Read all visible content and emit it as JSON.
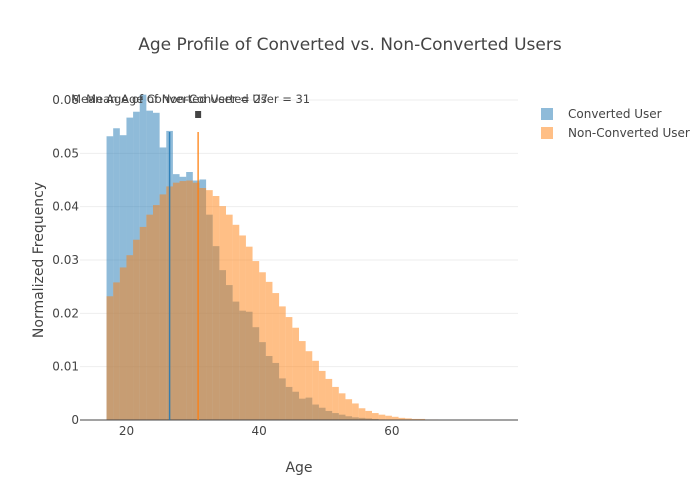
{
  "chart_data": {
    "type": "histogram",
    "title": "Age Profile of Converted vs. Non-Converted Users",
    "xlabel": "Age",
    "ylabel": "Normalized Frequency",
    "xlim": [
      13,
      79
    ],
    "ylim": [
      0,
      0.06
    ],
    "xticks": [
      20,
      40,
      60
    ],
    "yticks": [
      0,
      0.01,
      0.02,
      0.03,
      0.04,
      0.05,
      0.06
    ],
    "ytick_labels": [
      "0",
      "0.01",
      "0.02",
      "0.03",
      "0.04",
      "0.05",
      "0.06"
    ],
    "grid": true,
    "legend_position": "top-right",
    "bin_start": 17,
    "bin_width": 1,
    "series": [
      {
        "name": "Converted User",
        "color": "#1f77b4",
        "opacity": 0.5,
        "values": [
          0.0532,
          0.0547,
          0.0534,
          0.0567,
          0.0578,
          0.061,
          0.058,
          0.0576,
          0.0511,
          0.0542,
          0.0461,
          0.0456,
          0.0465,
          0.0449,
          0.0451,
          0.0385,
          0.0326,
          0.0281,
          0.0253,
          0.0222,
          0.0205,
          0.0203,
          0.0174,
          0.0146,
          0.012,
          0.0107,
          0.0078,
          0.0062,
          0.0053,
          0.004,
          0.0042,
          0.0029,
          0.0023,
          0.0017,
          0.0013,
          0.001,
          0.0007,
          0.0005,
          0.0004,
          0.0003,
          0.0002,
          0.0001
        ]
      },
      {
        "name": "Non-Converted User",
        "color": "#ff7f0e",
        "opacity": 0.5,
        "values": [
          0.0232,
          0.0258,
          0.0286,
          0.0309,
          0.0338,
          0.0362,
          0.0385,
          0.0403,
          0.0423,
          0.0438,
          0.0445,
          0.0448,
          0.0449,
          0.0445,
          0.0435,
          0.0431,
          0.042,
          0.0401,
          0.0385,
          0.0366,
          0.0346,
          0.0325,
          0.0298,
          0.0277,
          0.0259,
          0.0238,
          0.0213,
          0.0193,
          0.0173,
          0.0148,
          0.0129,
          0.0111,
          0.0092,
          0.0077,
          0.0062,
          0.005,
          0.0039,
          0.0031,
          0.0022,
          0.0017,
          0.0013,
          0.001,
          0.0008,
          0.0006,
          0.0004,
          0.0003,
          0.0002,
          0.0002,
          0.0001,
          0.0001
        ]
      }
    ],
    "mean_lines": [
      {
        "x": 26.5,
        "color": "#1f77b4",
        "label": "Mean Age of Converted User = 27"
      },
      {
        "x": 30.8,
        "color": "#ff7f0e",
        "label": "Mean Age of Non-Converted User = 31"
      }
    ]
  }
}
